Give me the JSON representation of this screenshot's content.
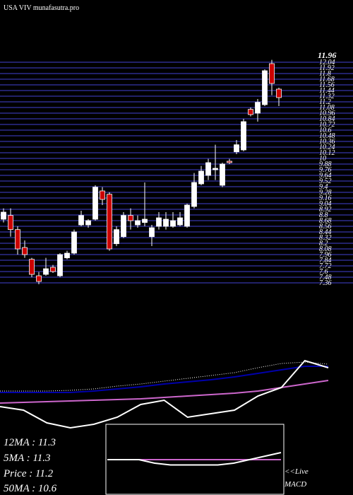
{
  "chart_data": [
    {
      "type": "candlestick",
      "title": "USA VIV munafasutra.pro",
      "annotation": "11.96",
      "ylim": [
        7.36,
        12.16
      ],
      "yticks": [
        12.04,
        11.92,
        11.8,
        11.68,
        11.56,
        11.44,
        11.32,
        11.2,
        11.08,
        10.96,
        10.84,
        10.72,
        10.6,
        10.48,
        10.36,
        10.24,
        10.12,
        10,
        9.88,
        9.76,
        9.64,
        9.52,
        9.4,
        9.28,
        9.16,
        9.04,
        8.92,
        8.8,
        8.68,
        8.56,
        8.44,
        8.32,
        8.2,
        8.08,
        7.96,
        7.84,
        7.72,
        7.6,
        7.48,
        7.36
      ],
      "grid": true,
      "grid_color": "#3535a8",
      "up_color": "#ffffff",
      "down_color": "#cc0000",
      "candles": {
        "open": [
          8.71,
          8.79,
          8.49,
          8.11,
          7.86,
          7.51,
          7.54,
          7.69,
          7.51,
          7.89,
          7.99,
          8.59,
          8.59,
          8.71,
          9.31,
          9.24,
          8.19,
          8.34,
          8.79,
          8.59,
          8.64,
          8.34,
          8.56,
          8.56,
          8.56,
          8.59,
          8.56,
          8.98,
          9.46,
          9.64,
          9.76,
          9.43,
          9.94,
          10.14,
          10.18,
          11.04,
          10.96,
          11.14,
          12.01,
          11.47
        ],
        "high": [
          8.94,
          8.94,
          8.56,
          8.26,
          7.89,
          7.59,
          7.89,
          7.74,
          7.99,
          8.04,
          8.49,
          8.89,
          8.71,
          9.43,
          9.39,
          9.28,
          8.56,
          8.86,
          8.94,
          8.79,
          9.49,
          8.59,
          8.86,
          8.86,
          8.86,
          8.86,
          9.04,
          9.69,
          9.84,
          9.99,
          10.29,
          9.91,
          9.99,
          10.39,
          10.84,
          11.08,
          11.26,
          11.89,
          12.09,
          11.5
        ],
        "low": [
          8.64,
          8.34,
          7.96,
          7.89,
          7.48,
          7.33,
          7.51,
          7.57,
          7.48,
          7.86,
          7.96,
          8.56,
          8.53,
          8.68,
          9.01,
          8.04,
          8.14,
          8.31,
          8.49,
          8.53,
          8.56,
          8.14,
          8.49,
          8.49,
          8.53,
          8.56,
          8.53,
          8.94,
          9.43,
          9.54,
          9.54,
          9.39,
          9.88,
          10.09,
          10.15,
          10.89,
          10.78,
          11.11,
          11.34,
          11.11
        ],
        "close": [
          8.86,
          8.49,
          8.08,
          7.96,
          7.54,
          7.39,
          7.66,
          7.6,
          7.96,
          7.99,
          8.44,
          8.79,
          8.68,
          9.39,
          9.13,
          8.08,
          8.49,
          8.79,
          8.68,
          8.68,
          8.71,
          8.53,
          8.74,
          8.71,
          8.68,
          8.74,
          9.01,
          9.49,
          9.73,
          9.91,
          9.79,
          9.88,
          9.91,
          10.29,
          10.78,
          10.93,
          11.19,
          11.86,
          11.59,
          11.29
        ]
      }
    },
    {
      "type": "line",
      "ylim": [
        0,
        110
      ],
      "annotations": [
        "12MA : 11.3",
        "5MA : 11.3",
        "Price   : 11.2",
        "50MA : 10.6"
      ],
      "series": [
        {
          "color": "#cc66cc",
          "style": "solid",
          "values": [
            40,
            41,
            42,
            43,
            44,
            45,
            46,
            48,
            50,
            52,
            54,
            57,
            62,
            67,
            72
          ]
        },
        {
          "color": "#ffffff",
          "style": "dotted",
          "values": [
            57,
            57,
            57,
            58,
            60,
            64,
            67,
            71,
            75,
            79,
            83,
            90,
            96,
            98,
            95
          ]
        },
        {
          "color": "#0000aa",
          "style": "solid",
          "values": [
            55,
            55,
            55,
            55,
            57,
            60,
            63,
            67,
            70,
            73,
            77,
            82,
            87,
            92,
            92
          ]
        },
        {
          "color": "#ffffff",
          "style": "solid",
          "values": [
            35,
            30,
            12,
            5,
            10,
            20,
            38,
            44,
            20,
            25,
            30,
            50,
            62,
            100,
            90
          ]
        }
      ]
    },
    {
      "type": "line",
      "title": "MACD",
      "annotation": "<<Live",
      "ylim": [
        0,
        40
      ],
      "series": [
        {
          "color": "#cc66cc",
          "style": "solid",
          "values": [
            20,
            20,
            20,
            20,
            20,
            20,
            20,
            20,
            20,
            20,
            20,
            20
          ]
        },
        {
          "color": "#ffffff",
          "style": "solid",
          "values": [
            20,
            20,
            20,
            18,
            17,
            17,
            17,
            17,
            18,
            20,
            22,
            24
          ]
        }
      ]
    }
  ]
}
